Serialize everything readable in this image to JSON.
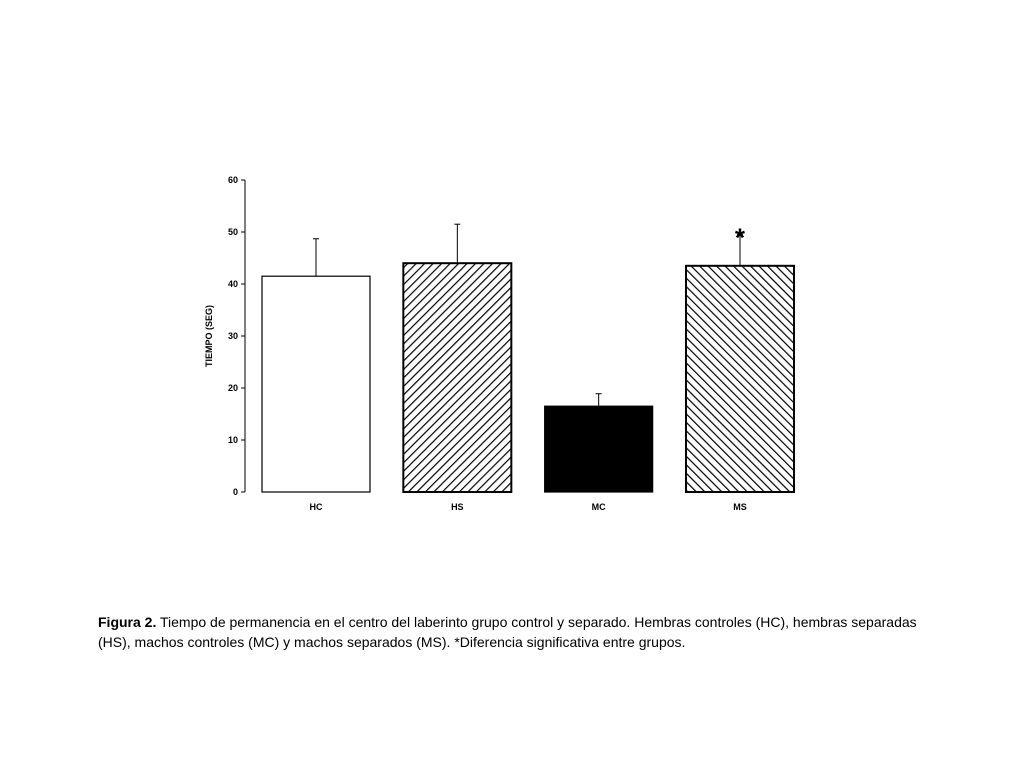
{
  "chart_data": {
    "type": "bar",
    "categories": [
      "HC",
      "HS",
      "MC",
      "MS"
    ],
    "values": [
      41.5,
      44,
      16.5,
      43.5
    ],
    "errors": [
      7.2,
      7.5,
      2.4,
      6
    ],
    "patterns": [
      "open",
      "diagonal-up",
      "solid-black",
      "diagonal-down"
    ],
    "annotations": [
      {
        "category": "MS",
        "text": "*"
      }
    ],
    "title": "",
    "xlabel": "",
    "ylabel": "TIEMPO (SEG)",
    "ylim": [
      0,
      60
    ],
    "yticks": [
      0,
      10,
      20,
      30,
      40,
      50,
      60
    ],
    "grid": false,
    "colors": {
      "bar_fill": "#000000",
      "bar_stroke": "#000000",
      "open_fill": "#ffffff"
    }
  },
  "caption": {
    "label": "Figura 2.",
    "text": " Tiempo de permanencia en el centro del laberinto grupo control y separado. Hembras controles (HC), hembras separadas (HS), machos controles (MC) y machos separados (MS). *Diferencia significativa entre grupos."
  }
}
